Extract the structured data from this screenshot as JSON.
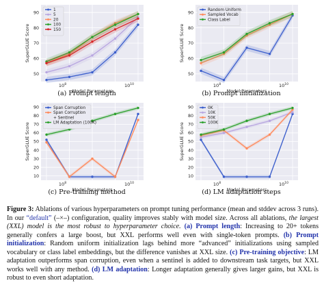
{
  "panels": [
    {
      "id": "a",
      "caption": "(a) Prompt length",
      "chart_data": {
        "type": "line",
        "x": [
          "10^8",
          "10^9",
          "10^10",
          "10^11",
          "10^12"
        ],
        "xlabel": "Model Parameters",
        "ylabel": "SuperGLUE Score",
        "ylim": [
          45,
          95
        ],
        "yticks": [
          50,
          60,
          70,
          80,
          90
        ],
        "xtick_labels": [
          "10^8",
          "10^10"
        ],
        "legend_position": "top-left",
        "series": [
          {
            "name": "1",
            "color": "#3b5ecc",
            "values": [
              46,
              48,
              51,
              64,
              82
            ]
          },
          {
            "name": "5",
            "color": "#b8a6e0",
            "values": [
              51,
              55,
              62,
              73,
              87
            ]
          },
          {
            "name": "20",
            "color": "#ff8a5c",
            "values": [
              57,
              63,
              74,
              83,
              89
            ]
          },
          {
            "name": "100",
            "color": "#2ca02c",
            "values": [
              58,
              64,
              74,
              82,
              89
            ]
          },
          {
            "name": "150",
            "color": "#d62728",
            "values": [
              57,
              62,
              71,
              79,
              86
            ]
          }
        ]
      }
    },
    {
      "id": "b",
      "caption": "(b) Prompt initialization",
      "chart_data": {
        "type": "line",
        "x": [
          "10^8",
          "10^9",
          "10^10",
          "10^11",
          "10^12"
        ],
        "xlabel": "Model Parameters",
        "ylabel": "SuperGLUE Score",
        "ylim": [
          45,
          95
        ],
        "yticks": [
          50,
          60,
          70,
          80,
          90
        ],
        "xtick_labels": [
          "10^8",
          "10^10"
        ],
        "legend_position": "top-left",
        "series": [
          {
            "name": "Random Uniform",
            "color": "#3b5ecc",
            "values": [
              52,
              46,
              67,
              63,
              88
            ]
          },
          {
            "name": "Sampled Vocab",
            "color": "#ff8a5c",
            "values": [
              57,
              63,
              75,
              82,
              89
            ]
          },
          {
            "name": "Class Label",
            "color": "#2ca02c",
            "values": [
              59,
              64,
              76,
              83,
              89
            ]
          }
        ]
      }
    },
    {
      "id": "c",
      "caption": "(c) Pre-training method",
      "chart_data": {
        "type": "line",
        "x": [
          "10^8",
          "10^9",
          "10^10",
          "10^11",
          "10^12"
        ],
        "xlabel": "Model Parameters",
        "ylabel": "SuperGLUE Score",
        "ylim": [
          5,
          95
        ],
        "yticks": [
          10,
          20,
          30,
          40,
          50,
          60,
          70,
          80,
          90
        ],
        "xtick_labels": [
          "10^8",
          "10^10"
        ],
        "legend_position": "top-left",
        "series": [
          {
            "name": "Span Corruption",
            "color": "#3b5ecc",
            "values": [
              52,
              9,
              9,
              9,
              82
            ]
          },
          {
            "name": "Span Corruption + Sentinel",
            "color": "#ff8a5c",
            "values": [
              49,
              9,
              30,
              9,
              75
            ]
          },
          {
            "name": "LM Adaptation (100K)",
            "color": "#2ca02c",
            "values": [
              58,
              64,
              74,
              82,
              89
            ]
          }
        ]
      }
    },
    {
      "id": "d",
      "caption": "(d) LM adaptation steps",
      "chart_data": {
        "type": "line",
        "x": [
          "10^8",
          "10^9",
          "10^10",
          "10^11",
          "10^12"
        ],
        "xlabel": "Model Parameters",
        "ylabel": "SuperGLUE Score",
        "ylim": [
          5,
          95
        ],
        "yticks": [
          10,
          20,
          30,
          40,
          50,
          60,
          70,
          80,
          90
        ],
        "xtick_labels": [
          "10^8",
          "10^10"
        ],
        "legend_position": "top-left",
        "series": [
          {
            "name": "0K",
            "color": "#3b5ecc",
            "values": [
              52,
              9,
              9,
              9,
              82
            ]
          },
          {
            "name": "10K",
            "color": "#b8a6e0",
            "values": [
              55,
              60,
              67,
              74,
              84
            ]
          },
          {
            "name": "50K",
            "color": "#ff8a5c",
            "values": [
              57,
              63,
              42,
              58,
              87
            ]
          },
          {
            "name": "100K",
            "color": "#2ca02c",
            "values": [
              58,
              64,
              74,
              82,
              89
            ]
          }
        ]
      }
    }
  ],
  "caption": {
    "figure_label": "Figure 3:",
    "t1": " Ablations of various hyperparameters on prompt tuning performance (mean and stddev across 3 runs). In our ",
    "default_word": "“default”",
    "t2": " (",
    "default_marker": "–×–",
    "t3": ") configuration, quality improves stably with model size. Across all ablations, ",
    "italic1": "the largest (XXL) model is the most robust to hyperparameter choice.",
    "t4": " ",
    "a_label": "(a) Prompt length",
    "a_text": ": Increasing to 20+ tokens generally confers a large boost, but XXL performs well even with single-token prompts. ",
    "b_label": "(b) Prompt initialization",
    "b_text": ": Random uniform initialization lags behind more “advanced” initializations using sampled vocabulary or class label embeddings, but the difference vanishes at XXL size. ",
    "c_label": "(c) Pre-training objective",
    "c_text": ": LM adaptation outperforms span corruption, even when a sentinel is added to downstream task targets, but XXL works well with any method. ",
    "d_label": "(d) LM adaptation",
    "d_text": ": Longer adaptation generally gives larger gains, but XXL is robust to even short adaptation."
  }
}
